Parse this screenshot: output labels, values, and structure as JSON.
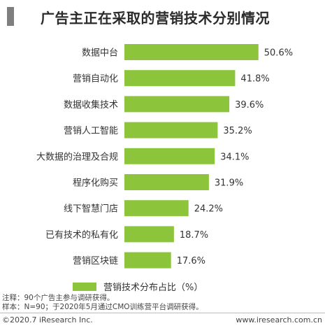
{
  "colors": {
    "bar": "#8cc43c",
    "title_marker": "#7f7f7f"
  },
  "chart_data": {
    "type": "bar",
    "orientation": "horizontal",
    "title": "广告主正在采取的营销技术分别情况",
    "categories": [
      "数据中台",
      "营销自动化",
      "数据收集技术",
      "营销人工智能",
      "大数据的治理及合规",
      "程序化购买",
      "线下智慧门店",
      "已有技术的私有化",
      "营销区块链"
    ],
    "value_labels": [
      "50.6%",
      "41.8%",
      "39.6%",
      "35.2%",
      "34.1%",
      "31.9%",
      "24.2%",
      "18.7%",
      "17.6%"
    ],
    "series": [
      {
        "name": "营销技术分布占比（%）",
        "values": [
          50.6,
          41.8,
          39.6,
          35.2,
          34.1,
          31.9,
          24.2,
          18.7,
          17.6
        ]
      }
    ],
    "xlim": [
      0,
      60
    ],
    "grid": false,
    "legend_position": "bottom"
  },
  "notes": [
    "注释：90个广告主参与调研获得。",
    "样本：N=90；于2020年5月通过CMO训练营平台调研获得。"
  ],
  "footer": {
    "copyright": "©2020.7 iResearch Inc.",
    "website": "www.iresearch.com.cn"
  }
}
